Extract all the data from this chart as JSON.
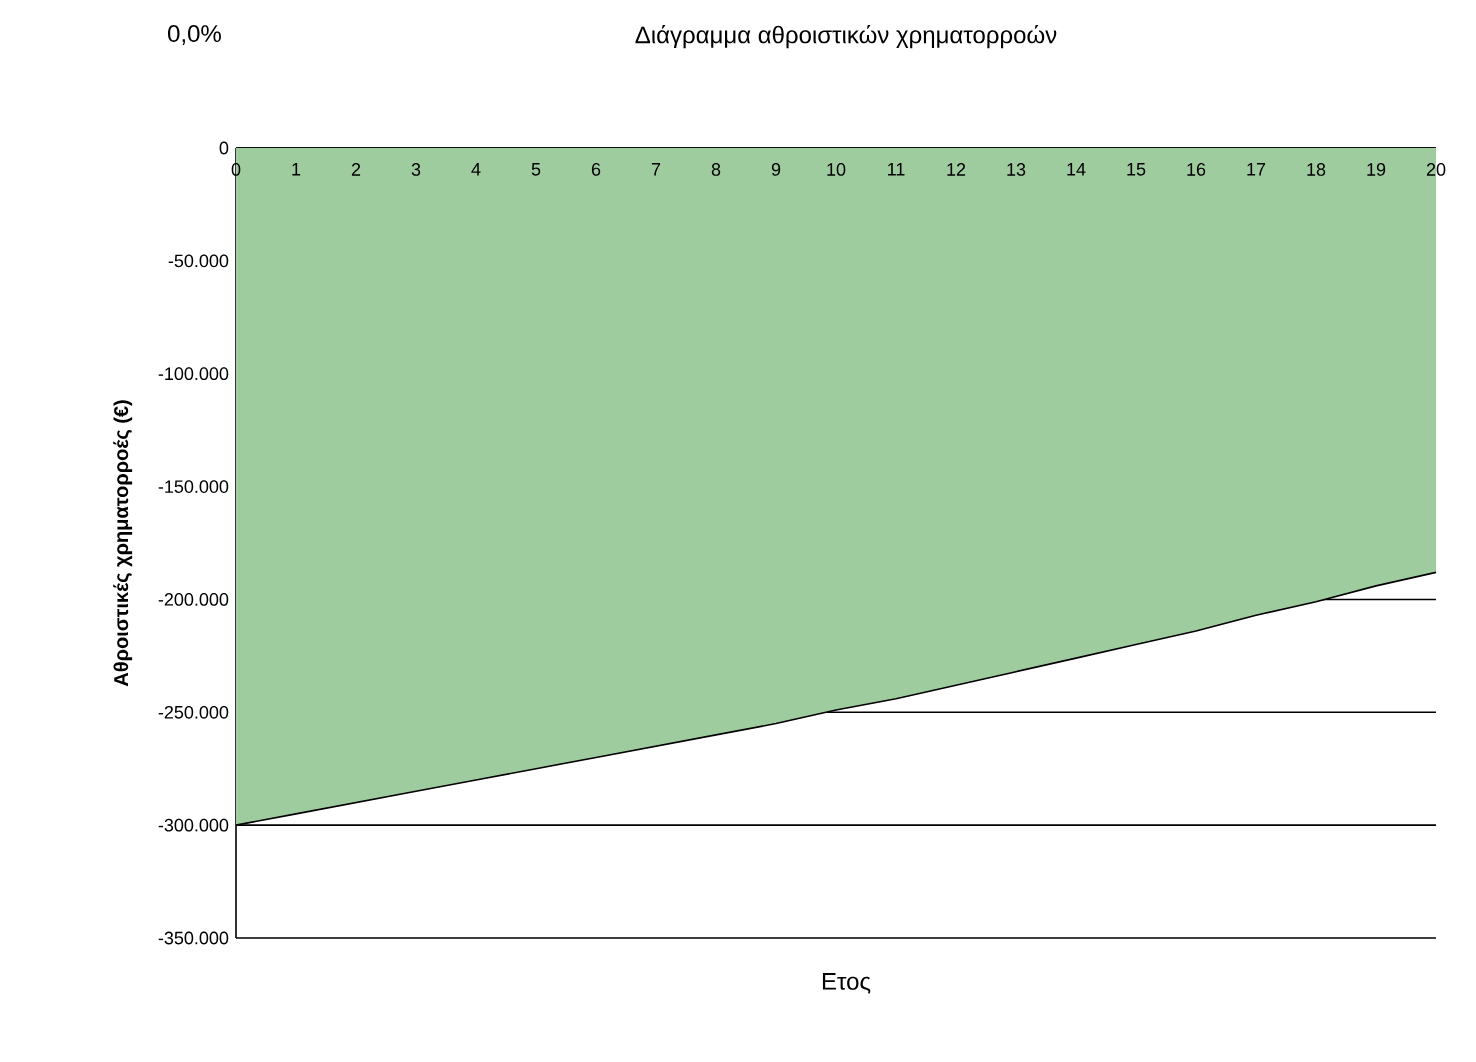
{
  "chart_data": {
    "type": "area",
    "title": "Διάγραμμα αθροιστικών χρηματορροών",
    "xlabel": "Ετος",
    "ylabel": "Αθροιστικές χρηματορροές (€)",
    "annotations": [
      "0,0%"
    ],
    "x": [
      0,
      1,
      2,
      3,
      4,
      5,
      6,
      7,
      8,
      9,
      10,
      11,
      12,
      13,
      14,
      15,
      16,
      17,
      18,
      19,
      20
    ],
    "series": [
      {
        "color": "#9fcc9f",
        "values": [
          -300000,
          -295000,
          -290000,
          -285000,
          -280000,
          -275000,
          -270000,
          -265000,
          -260000,
          -255000,
          -249000,
          -244000,
          -238000,
          -232000,
          -226000,
          -220000,
          -214000,
          -207000,
          -201000,
          -194000,
          -188000
        ]
      }
    ],
    "xlim": [
      0,
      20
    ],
    "xticks": [
      0,
      1,
      2,
      3,
      4,
      5,
      6,
      7,
      8,
      9,
      10,
      11,
      12,
      13,
      14,
      15,
      16,
      17,
      18,
      19,
      20
    ],
    "ylim": [
      -350000,
      0
    ],
    "yticks": [
      0,
      {
        "value": -50000,
        "label": "-50.000"
      },
      {
        "value": -100000,
        "label": "-100.000"
      },
      {
        "value": -150000,
        "label": "-150.000"
      },
      {
        "value": -200000,
        "label": "-200.000"
      },
      {
        "value": -250000,
        "label": "-250.000"
      },
      {
        "value": -300000,
        "label": "-300.000"
      },
      {
        "value": -350000,
        "label": "-350.000"
      }
    ],
    "grid": "y"
  }
}
